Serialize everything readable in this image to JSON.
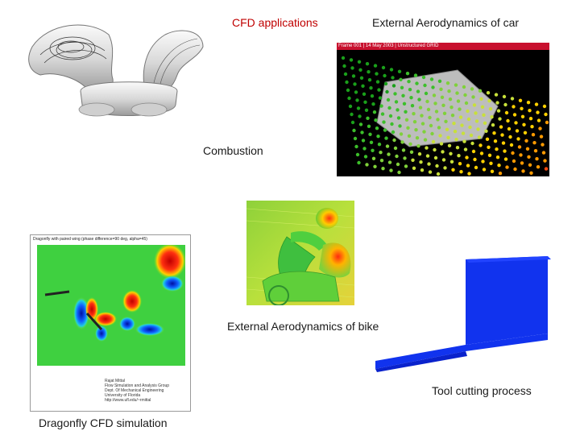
{
  "slide": {
    "title": "CFD applications",
    "labels": {
      "car": "External Aerodynamics of car",
      "combustion": "Combustion",
      "bike": "External Aerodynamics of bike",
      "tool": "Tool cutting process",
      "dragonfly": "Dragonfly CFD simulation"
    },
    "car_image": {
      "header_left": "Frame 001 | 14 May 2003 | Unstructured GRID"
    },
    "dragonfly_image": {
      "caption": "Dragonfly with paired wing (phase difference=90 deg, alpha=45)",
      "credits": [
        "Rajat Mittal",
        "Flow Simulation and Analysis Group",
        "Dept. Of Mechanical Engineering",
        "University of Florida",
        "http://www.ufl.edu/~rmittal"
      ]
    }
  },
  "colors": {
    "title": "#c00000",
    "car_header": "#c8102e",
    "tool_blue": "#1133ee"
  }
}
